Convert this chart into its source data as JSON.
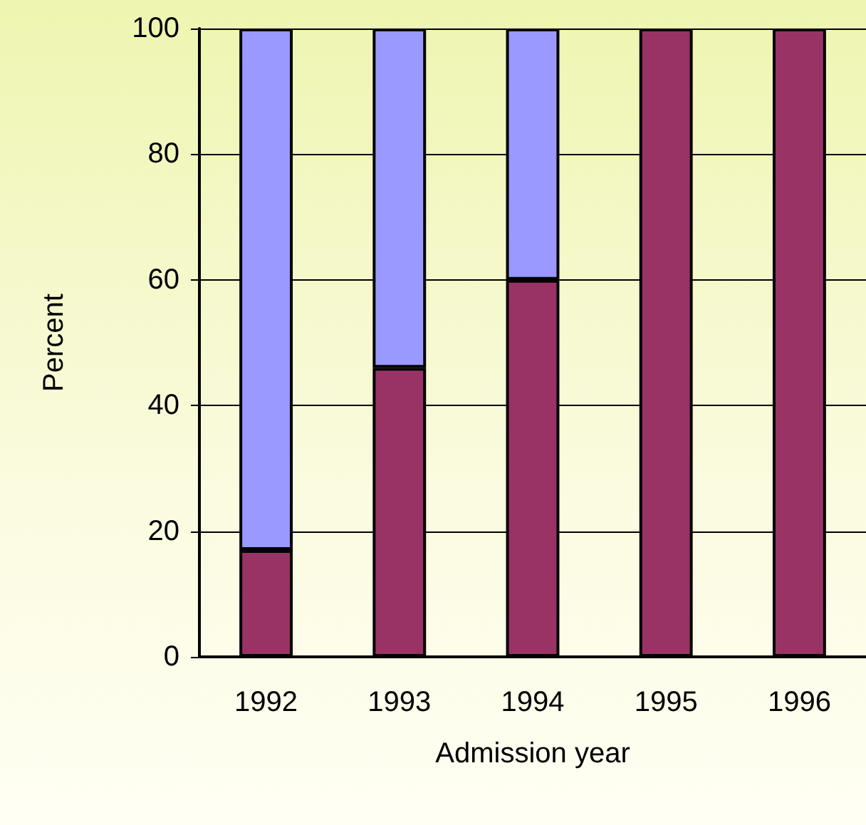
{
  "chart_data": {
    "type": "bar",
    "stacked": true,
    "xlabel": "Admission year",
    "ylabel": "Percent",
    "categories": [
      "1992",
      "1993",
      "1994",
      "1995",
      "1996"
    ],
    "series": [
      {
        "color": "#993366",
        "values": [
          17,
          46,
          60,
          100,
          100
        ]
      },
      {
        "color": "#9999ff",
        "values": [
          83,
          54,
          40,
          null,
          null
        ]
      }
    ],
    "ylim": [
      0,
      100
    ],
    "yticks": [
      0,
      20,
      40,
      60,
      80,
      100
    ],
    "grid": "y"
  }
}
